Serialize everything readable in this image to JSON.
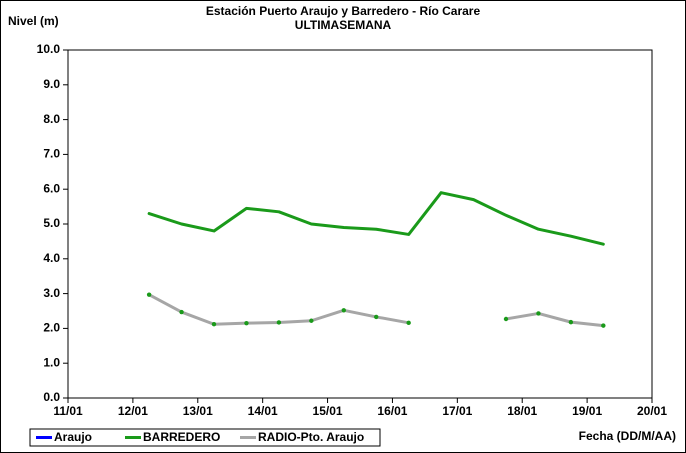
{
  "chart_data": {
    "type": "line",
    "title": "Estación Puerto Araujo y Barredero - Río Carare",
    "subtitle": "ULTIMASEMANA",
    "y_label": "Nivel (m)",
    "x_label": "Fecha (DD/M/AA)",
    "x": [
      12.25,
      12.75,
      13.25,
      13.75,
      14.25,
      14.75,
      15.25,
      15.75,
      16.25,
      16.75,
      17.25,
      17.75,
      18.25,
      18.75,
      19.25
    ],
    "series": [
      {
        "name": "Araujo",
        "color": "#0000ff",
        "values": [
          null,
          null,
          null,
          null,
          null,
          null,
          null,
          null,
          null,
          null,
          null,
          null,
          null,
          null,
          null
        ]
      },
      {
        "name": "BARREDERO",
        "color": "#1a9a1a",
        "values": [
          5.3,
          5.0,
          4.8,
          5.45,
          5.35,
          5.0,
          4.9,
          4.85,
          4.7,
          5.9,
          5.7,
          5.25,
          4.85,
          4.65,
          4.42
        ]
      },
      {
        "name": "RADIO-Pto. Araujo",
        "color": "#a6a6a6",
        "marker_color": "#1a9a1a",
        "values": [
          2.97,
          2.47,
          2.12,
          2.15,
          2.17,
          2.22,
          2.52,
          2.33,
          2.16,
          null,
          null,
          2.27,
          2.43,
          2.18,
          2.08
        ]
      }
    ],
    "xlim": [
      11,
      20
    ],
    "xticks": [
      {
        "value": 11,
        "label": "11/01"
      },
      {
        "value": 12,
        "label": "12/01"
      },
      {
        "value": 13,
        "label": "13/01"
      },
      {
        "value": 14,
        "label": "14/01"
      },
      {
        "value": 15,
        "label": "15/01"
      },
      {
        "value": 16,
        "label": "16/01"
      },
      {
        "value": 17,
        "label": "17/01"
      },
      {
        "value": 18,
        "label": "18/01"
      },
      {
        "value": 19,
        "label": "19/01"
      },
      {
        "value": 20,
        "label": "20/01"
      }
    ],
    "ylim": [
      0,
      10
    ],
    "yticks": [
      {
        "value": 0,
        "label": "0.0"
      },
      {
        "value": 1,
        "label": "1.0"
      },
      {
        "value": 2,
        "label": "2.0"
      },
      {
        "value": 3,
        "label": "3.0"
      },
      {
        "value": 4,
        "label": "4.0"
      },
      {
        "value": 5,
        "label": "5.0"
      },
      {
        "value": 6,
        "label": "6.0"
      },
      {
        "value": 7,
        "label": "7.0"
      },
      {
        "value": 8,
        "label": "8.0"
      },
      {
        "value": 9,
        "label": "9.0"
      },
      {
        "value": 10,
        "label": "10.0"
      }
    ],
    "legend": "bottom"
  }
}
